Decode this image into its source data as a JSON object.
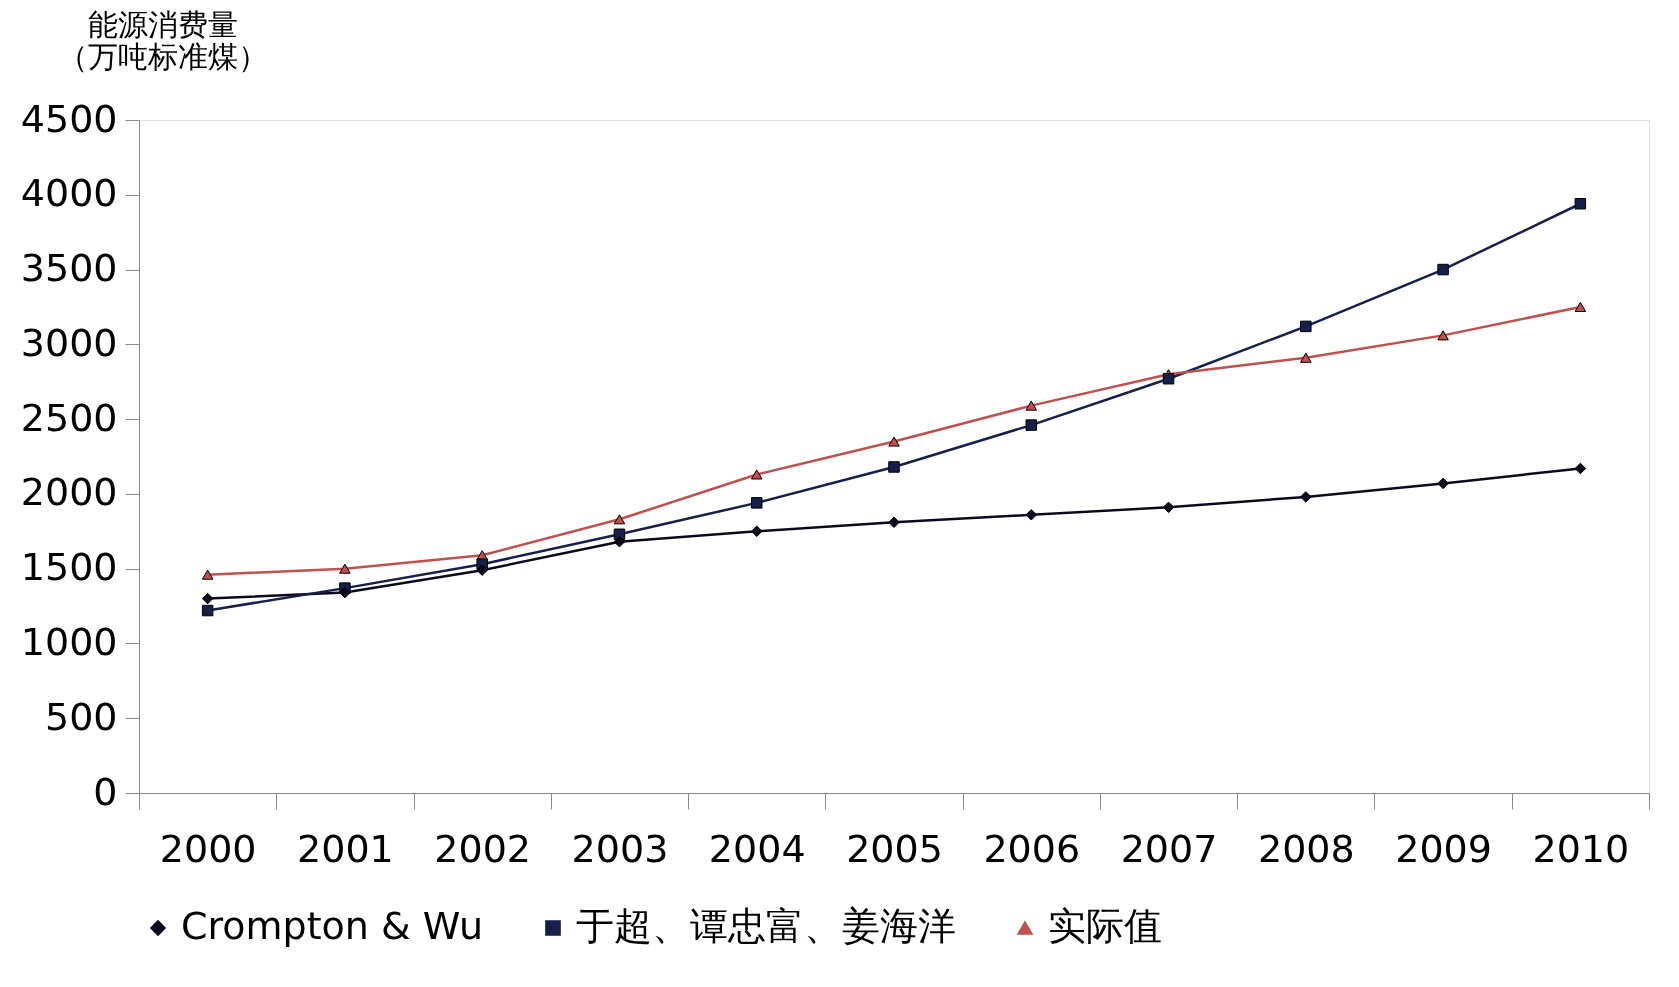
{
  "chart_data": {
    "type": "line",
    "ylabel": "能源消费量（万吨标准煤）",
    "categories": [
      "2000",
      "2001",
      "2002",
      "2003",
      "2004",
      "2005",
      "2006",
      "2007",
      "2008",
      "2009",
      "2010"
    ],
    "series": [
      {
        "name": "Crompton & Wu",
        "color": "#0a0a1e",
        "marker": "diamond",
        "values": [
          1300,
          1340,
          1490,
          1680,
          1750,
          1810,
          1860,
          1910,
          1980,
          2070,
          2170
        ]
      },
      {
        "name": "于超、谭忠富、姜海洋",
        "color": "#14204a",
        "marker": "square",
        "values": [
          1220,
          1370,
          1530,
          1730,
          1940,
          2180,
          2460,
          2770,
          3120,
          3500,
          3940
        ]
      },
      {
        "name": "实际值",
        "color": "#c0504d",
        "marker": "triangle",
        "values": [
          1460,
          1500,
          1590,
          1830,
          2130,
          2350,
          2590,
          2800,
          2910,
          3060,
          3250
        ]
      }
    ],
    "ylim": [
      0,
      4500
    ],
    "yticks": [
      0,
      500,
      1000,
      1500,
      2000,
      2500,
      3000,
      3500,
      4000,
      4500
    ],
    "grid": false,
    "legend": "bottom"
  }
}
